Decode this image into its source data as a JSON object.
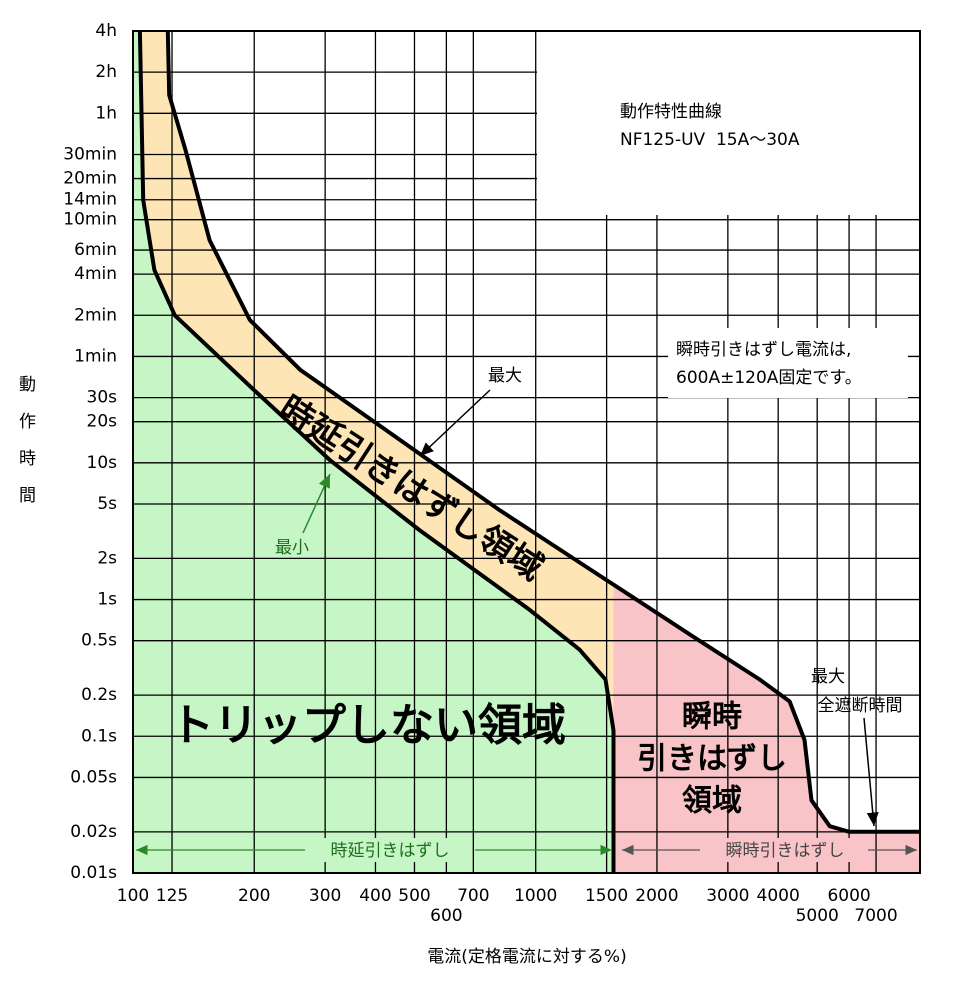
{
  "chart_data": {
    "type": "line",
    "title": "動作特性曲線",
    "subtitle": "NF125-UV  15A～30A",
    "x_label": "電流(定格電流に対する%)",
    "y_label": "動作時間",
    "x_scale": "log",
    "y_scale": "log",
    "grid": true,
    "xlim": [
      100,
      9000
    ],
    "ylim": [
      0.01,
      14400
    ],
    "xticks": [
      100,
      125,
      200,
      300,
      400,
      500,
      600,
      700,
      1000,
      1500,
      2000,
      3000,
      4000,
      5000,
      6000,
      7000
    ],
    "yticks": [
      {
        "value": 14400,
        "label": "4h"
      },
      {
        "value": 7200,
        "label": "2h"
      },
      {
        "value": 3600,
        "label": "1h"
      },
      {
        "value": 1800,
        "label": "30min"
      },
      {
        "value": 1200,
        "label": "20min"
      },
      {
        "value": 840,
        "label": "14min"
      },
      {
        "value": 600,
        "label": "10min"
      },
      {
        "value": 360,
        "label": "6min"
      },
      {
        "value": 240,
        "label": "4min"
      },
      {
        "value": 120,
        "label": "2min"
      },
      {
        "value": 60,
        "label": "1min"
      },
      {
        "value": 30,
        "label": "30s"
      },
      {
        "value": 20,
        "label": "20s"
      },
      {
        "value": 10,
        "label": "10s"
      },
      {
        "value": 5,
        "label": "5s"
      },
      {
        "value": 2,
        "label": "2s"
      },
      {
        "value": 1,
        "label": "1s"
      },
      {
        "value": 0.5,
        "label": "0.5s"
      },
      {
        "value": 0.2,
        "label": "0.2s"
      },
      {
        "value": 0.1,
        "label": "0.1s"
      },
      {
        "value": 0.05,
        "label": "0.05s"
      },
      {
        "value": 0.02,
        "label": "0.02s"
      },
      {
        "value": 0.01,
        "label": "0.01s"
      }
    ],
    "series": [
      {
        "name": "最大",
        "color": "#000000",
        "x": [
          122,
          123,
          135,
          155,
          195,
          260,
          460,
          814,
          1440,
          2550,
          3600,
          4270,
          4650,
          4840,
          5370,
          6000,
          9000
        ],
        "values": [
          14400,
          4900,
          1940,
          425,
          111,
          48,
          14.7,
          4.5,
          1.5,
          0.5,
          0.26,
          0.18,
          0.094,
          0.034,
          0.022,
          0.02,
          0.02
        ]
      },
      {
        "name": "最小",
        "color": "#000000",
        "x": [
          104,
          106,
          113,
          127,
          200,
          308,
          516,
          966,
          1285,
          1490,
          1560,
          1560
        ],
        "values": [
          14400,
          835,
          257,
          120,
          34,
          10.5,
          3.2,
          0.84,
          0.43,
          0.26,
          0.11,
          0.01
        ]
      }
    ],
    "region_colors": {
      "no_trip": "#c6f5c6",
      "time_delay": "#fde5b6",
      "instant": "#f8c4c8"
    },
    "annotations": [
      "瞬時引きはずし電流は,",
      "600A±120A固定です。",
      "時延引きはずし領域",
      "トリップしない領域",
      "瞬時",
      "引きはずし",
      "領域",
      "最大",
      "全遮断時間",
      "時延引きはずし",
      "瞬時引きはずし"
    ]
  }
}
